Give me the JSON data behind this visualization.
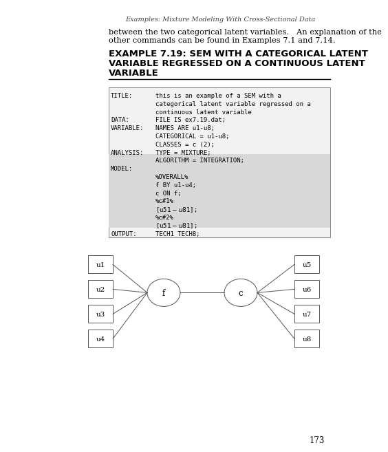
{
  "header_text": "Examples: Mixture Modeling With Cross-Sectional Data",
  "intro_text_1": "between the two categorical latent variables.   An explanation of the",
  "intro_text_2": "other commands can be found in Examples 7.1 and 7.14.",
  "title_line1": "EXAMPLE 7.19: SEM WITH A CATEGORICAL LATENT",
  "title_line2": "VARIABLE REGRESSED ON A CONTINUOUS LATENT",
  "title_line3": "VARIABLE",
  "code_lines": [
    [
      "TITLE:",
      "this is an example of a SEM with a"
    ],
    [
      "",
      "categorical latent variable regressed on a"
    ],
    [
      "",
      "continuous latent variable"
    ],
    [
      "DATA:",
      "FILE IS ex7.19.dat;"
    ],
    [
      "VARIABLE:",
      "NAMES ARE u1-u8;"
    ],
    [
      "",
      "CATEGORICAL = u1-u8;"
    ],
    [
      "",
      "CLASSES = c (2);"
    ],
    [
      "ANALYSIS:",
      "TYPE = MIXTURE;"
    ],
    [
      "",
      "ALGORITHM = INTEGRATION;"
    ],
    [
      "MODEL:",
      ""
    ],
    [
      "",
      "%OVERALL%"
    ],
    [
      "",
      "f BY u1-u4;"
    ],
    [
      "",
      "c ON f;"
    ],
    [
      "",
      "%c#1%"
    ],
    [
      "",
      "[u5$1-u8$1];"
    ],
    [
      "",
      "%c#2%"
    ],
    [
      "",
      "[u5$1-u8$1];"
    ],
    [
      "OUTPUT:",
      "TECH1 TECH8;"
    ]
  ],
  "shaded_rows": [
    8,
    9,
    10,
    11,
    12,
    13,
    14,
    15,
    16
  ],
  "page_number": "173",
  "left_boxes": [
    "u1",
    "u2",
    "u3",
    "u4"
  ],
  "right_boxes": [
    "u5",
    "u6",
    "u7",
    "u8"
  ],
  "left_circle": "f",
  "right_circle": "c",
  "bg_color": "#ffffff",
  "shade_color": "#d8d8d8",
  "box_bg": "#f0f0f0"
}
